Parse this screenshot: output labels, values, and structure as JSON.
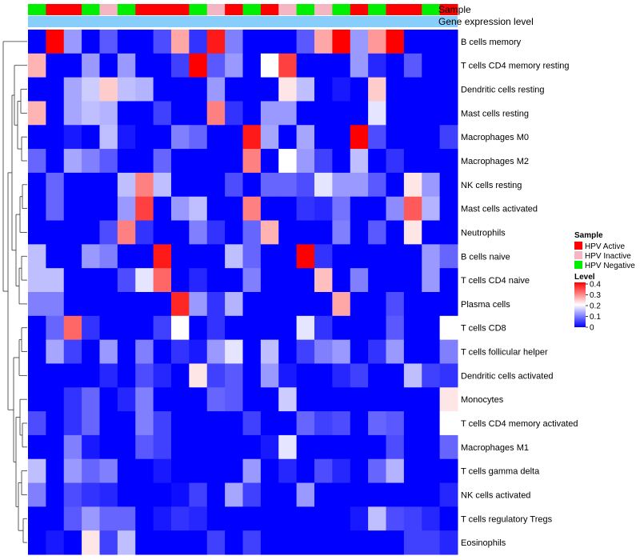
{
  "chart_data": {
    "type": "heatmap",
    "annotation_labels": {
      "sample": "Sample",
      "gene_expression": "Gene expression level"
    },
    "sample_colors": {
      "HPV Active": "#ff0000",
      "HPV Inactive": "#f4b6c2",
      "HPV Negative": "#00ee00"
    },
    "gene_expression_color": "#87cefa",
    "samples": [
      "HPV Negative",
      "HPV Active",
      "HPV Active",
      "HPV Negative",
      "HPV Inactive",
      "HPV Negative",
      "HPV Active",
      "HPV Active",
      "HPV Active",
      "HPV Negative",
      "HPV Inactive",
      "HPV Active",
      "HPV Negative",
      "HPV Active",
      "HPV Inactive",
      "HPV Negative",
      "HPV Inactive",
      "HPV Negative",
      "HPV Active",
      "HPV Negative",
      "HPV Active",
      "HPV Active",
      "HPV Negative",
      "HPV Active"
    ],
    "rows": [
      {
        "name": "B cells memory",
        "values": [
          0,
          0.4,
          0.12,
          0,
          0.07,
          0,
          0,
          0.06,
          0.27,
          0.04,
          0.38,
          0.1,
          0,
          0,
          0,
          0.07,
          0.27,
          0.4,
          0.12,
          0.28,
          0.4,
          0,
          0,
          0
        ]
      },
      {
        "name": "T cells CD4 memory resting",
        "values": [
          0.26,
          0,
          0,
          0.12,
          0,
          0.12,
          0,
          0,
          0.05,
          0.4,
          0.07,
          0.12,
          0,
          0.2,
          0.35,
          0,
          0,
          0,
          0.12,
          0.03,
          0,
          0.07,
          0,
          0
        ]
      },
      {
        "name": "Dendritic cells resting",
        "values": [
          0,
          0,
          0.13,
          0.16,
          0.24,
          0.15,
          0.14,
          0,
          0,
          0,
          0.12,
          0,
          0,
          0,
          0.22,
          0.15,
          0,
          0.02,
          0,
          0.24,
          0,
          0,
          0,
          0
        ]
      },
      {
        "name": "Mast cells resting",
        "values": [
          0.26,
          0,
          0.13,
          0.15,
          0.14,
          0,
          0,
          0.05,
          0,
          0,
          0.3,
          0.04,
          0,
          0.12,
          0.12,
          0,
          0,
          0,
          0,
          0.18,
          0,
          0,
          0,
          0
        ]
      },
      {
        "name": "Macrophages M0",
        "values": [
          0,
          0,
          0.02,
          0,
          0.15,
          0.02,
          0,
          0,
          0.1,
          0.08,
          0,
          0,
          0.38,
          0.13,
          0,
          0.13,
          0,
          0,
          0.4,
          0.06,
          0,
          0,
          0,
          0.05
        ]
      },
      {
        "name": "Macrophages M2",
        "values": [
          0.08,
          0,
          0.13,
          0.1,
          0.07,
          0,
          0,
          0.08,
          0,
          0,
          0,
          0,
          0.3,
          0,
          0.2,
          0.12,
          0.05,
          0,
          0.15,
          0,
          0.04,
          0,
          0,
          0
        ]
      },
      {
        "name": "NK cells resting",
        "values": [
          0,
          0.08,
          0,
          0,
          0,
          0.15,
          0.3,
          0.15,
          0,
          0,
          0,
          0.06,
          0,
          0.08,
          0.08,
          0.06,
          0.18,
          0.12,
          0.12,
          0.07,
          0,
          0.22,
          0.12,
          0
        ]
      },
      {
        "name": "Mast cells activated",
        "values": [
          0,
          0.08,
          0,
          0,
          0,
          0.12,
          0.35,
          0,
          0.12,
          0.15,
          0,
          0,
          0.3,
          0,
          0,
          0.04,
          0.03,
          0.09,
          0,
          0,
          0.11,
          0.33,
          0.14,
          0
        ]
      },
      {
        "name": "Neutrophils",
        "values": [
          0,
          0,
          0,
          0,
          0.06,
          0.3,
          0.04,
          0,
          0,
          0.1,
          0.04,
          0,
          0.08,
          0.26,
          0,
          0,
          0,
          0.1,
          0,
          0.07,
          0,
          0.22,
          0,
          0
        ]
      },
      {
        "name": "B cells naive",
        "values": [
          0.15,
          0,
          0,
          0.12,
          0.1,
          0,
          0,
          0.38,
          0,
          0,
          0,
          0.15,
          0.08,
          0,
          0,
          0.4,
          0.04,
          0,
          0,
          0,
          0,
          0,
          0.12,
          0.08
        ]
      },
      {
        "name": "T cells CD4 naive",
        "values": [
          0.15,
          0.15,
          0,
          0,
          0,
          0.06,
          0.18,
          0.32,
          0,
          0.03,
          0,
          0,
          0.1,
          0,
          0,
          0,
          0.25,
          0,
          0.1,
          0,
          0,
          0,
          0.12,
          0
        ]
      },
      {
        "name": "Plasma cells",
        "values": [
          0.1,
          0.1,
          0,
          0,
          0,
          0,
          0,
          0,
          0.37,
          0.12,
          0.04,
          0.14,
          0,
          0,
          0,
          0,
          0,
          0.27,
          0,
          0,
          0.06,
          0,
          0,
          0
        ]
      },
      {
        "name": "T cells CD8",
        "values": [
          0,
          0.08,
          0.32,
          0.04,
          0,
          0,
          0,
          0.05,
          0.2,
          0,
          0.04,
          0,
          0,
          0,
          0,
          0.18,
          0.04,
          0,
          0,
          0,
          0.07,
          0,
          0,
          0.2
        ]
      },
      {
        "name": "T cells follicular helper",
        "values": [
          0,
          0.13,
          0.05,
          0,
          0.12,
          0,
          0.1,
          0,
          0.04,
          0.02,
          0.12,
          0.18,
          0,
          0.15,
          0,
          0.05,
          0.1,
          0.12,
          0,
          0.04,
          0.12,
          0,
          0,
          0.1
        ]
      },
      {
        "name": "Dendritic cells activated",
        "values": [
          0,
          0,
          0,
          0,
          0.03,
          0,
          0.06,
          0.03,
          0,
          0.22,
          0.05,
          0.07,
          0,
          0.12,
          0.02,
          0,
          0,
          0.03,
          0.05,
          0,
          0,
          0.15,
          0.05,
          0.04
        ]
      },
      {
        "name": "Monocytes",
        "values": [
          0,
          0,
          0.04,
          0.08,
          0,
          0.03,
          0.1,
          0,
          0,
          0,
          0.08,
          0.07,
          0,
          0,
          0.16,
          0,
          0,
          0,
          0,
          0,
          0,
          0,
          0,
          0.22
        ]
      },
      {
        "name": "T cells CD4 memory activated",
        "values": [
          0.06,
          0,
          0.04,
          0.08,
          0,
          0,
          0.1,
          0.05,
          0,
          0,
          0,
          0,
          0.05,
          0,
          0,
          0.08,
          0.05,
          0.06,
          0,
          0.08,
          0.07,
          0,
          0,
          0.2
        ]
      },
      {
        "name": "Macrophages M1",
        "values": [
          0,
          0,
          0.1,
          0.02,
          0,
          0,
          0.07,
          0.05,
          0,
          0,
          0,
          0,
          0,
          0.02,
          0.18,
          0,
          0,
          0,
          0,
          0,
          0.06,
          0,
          0,
          0.08
        ]
      },
      {
        "name": "T cells gamma delta",
        "values": [
          0.15,
          0,
          0.12,
          0.08,
          0.1,
          0,
          0,
          0.02,
          0,
          0,
          0,
          0,
          0.12,
          0,
          0.03,
          0,
          0.06,
          0.03,
          0,
          0.08,
          0.14,
          0,
          0,
          0
        ]
      },
      {
        "name": "NK cells activated",
        "values": [
          0.1,
          0,
          0.06,
          0.04,
          0.03,
          0,
          0,
          0,
          0.01,
          0.05,
          0,
          0.13,
          0.05,
          0,
          0,
          0.12,
          0,
          0,
          0,
          0,
          0,
          0,
          0,
          0.03
        ]
      },
      {
        "name": "T cells regulatory  Tregs",
        "values": [
          0,
          0,
          0.07,
          0.12,
          0.08,
          0.08,
          0,
          0.02,
          0.04,
          0.03,
          0,
          0,
          0,
          0,
          0,
          0,
          0,
          0,
          0.02,
          0.15,
          0.06,
          0.05,
          0.03,
          0
        ]
      },
      {
        "name": "Eosinophils",
        "values": [
          0,
          0.02,
          0,
          0.22,
          0.05,
          0.15,
          0,
          0,
          0,
          0,
          0.05,
          0,
          0.05,
          0,
          0,
          0,
          0,
          0,
          0,
          0,
          0,
          0.05,
          0.05,
          0.03
        ]
      }
    ],
    "color_scale": {
      "min": 0,
      "mid": 0.2,
      "max": 0.4,
      "low_color": "#0000ff",
      "mid_color": "#ffffff",
      "high_color": "#ff0000"
    },
    "legend": {
      "sample_title": "Sample",
      "sample_items": [
        {
          "label": "HPV Active",
          "color": "#ff0000"
        },
        {
          "label": "HPV Inactive",
          "color": "#f4b6c2"
        },
        {
          "label": "HPV Negative",
          "color": "#00ee00"
        }
      ],
      "level_title": "Level",
      "level_ticks": [
        "0.4",
        "0.3",
        "0.2",
        "0.1",
        "0"
      ],
      "placement": "right"
    }
  }
}
